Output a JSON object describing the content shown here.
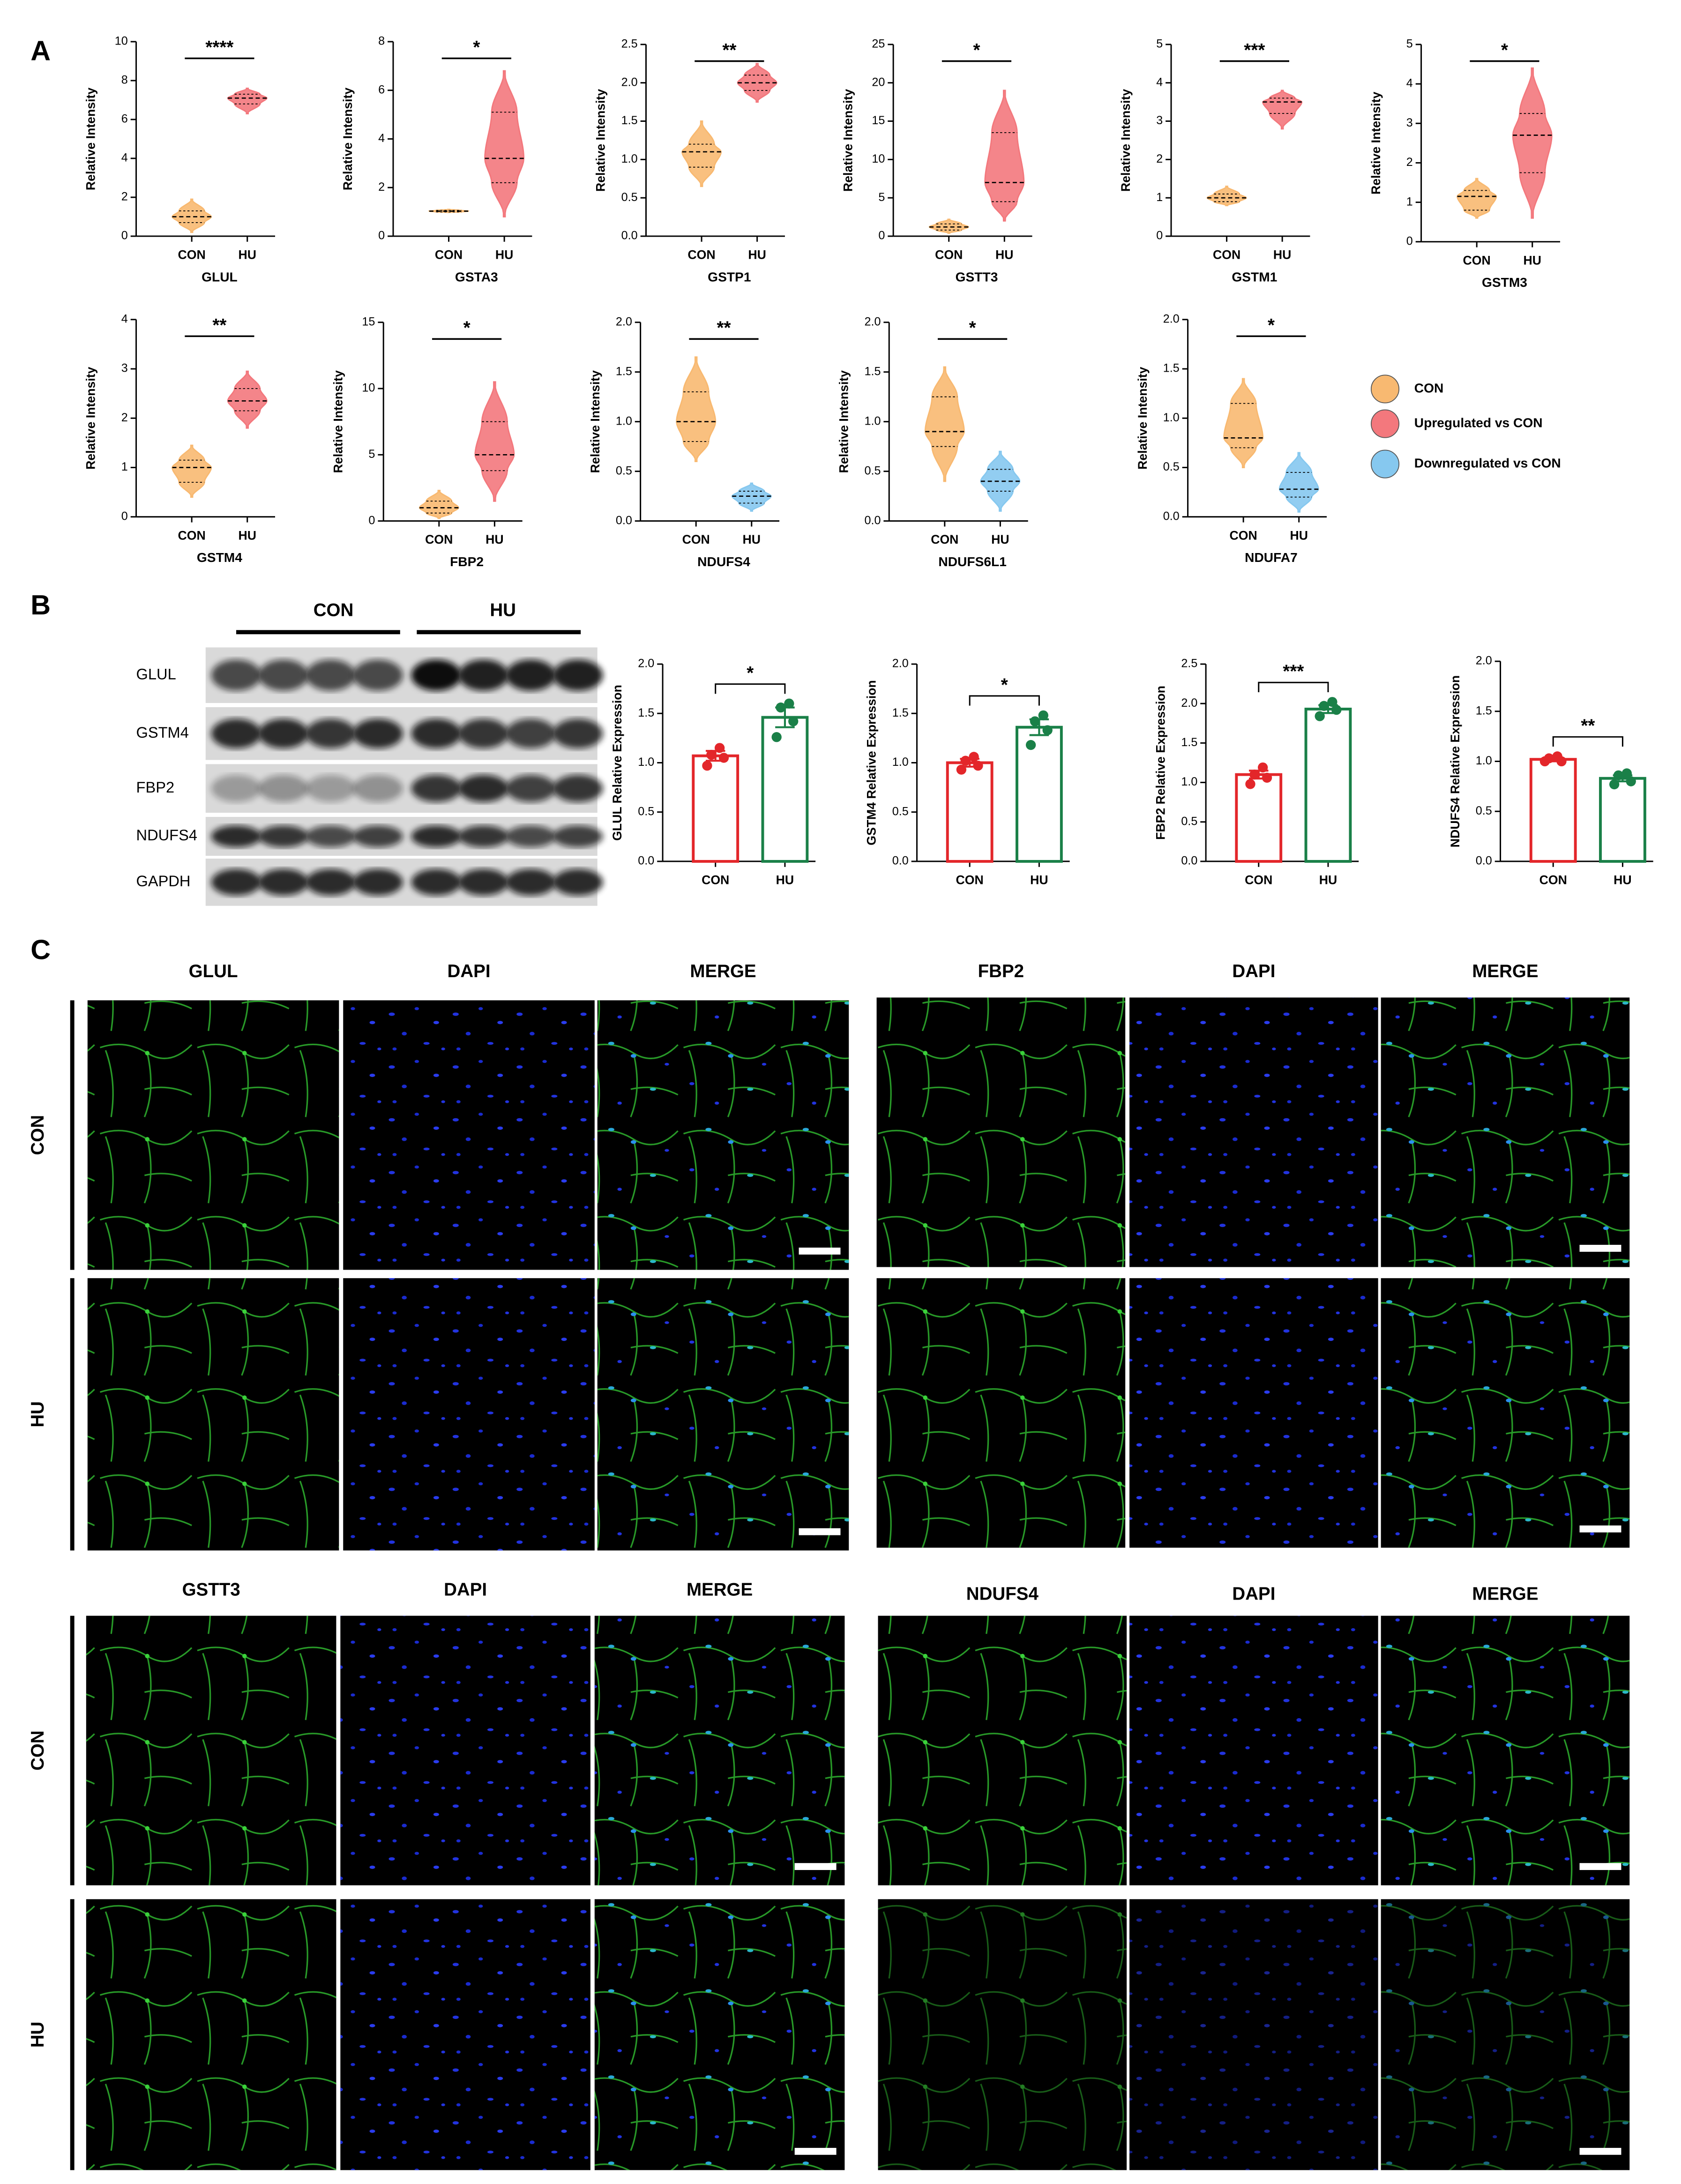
{
  "panel_labels": [
    "A",
    "B",
    "C"
  ],
  "legend": [
    {
      "label": "CON",
      "color": "#f8b971"
    },
    {
      "label": "Upregulated vs CON",
      "color": "#f3787d"
    },
    {
      "label": "Downregulated vs CON",
      "color": "#86c8ef"
    }
  ],
  "chart_data": [
    {
      "type": "violin",
      "xlabel": "GLUL",
      "ylabel": "Relative Intensity",
      "significance": "****",
      "categories": [
        "CON",
        "HU"
      ],
      "colors": [
        "#f8b971",
        "#f3787d"
      ],
      "min": [
        0.2,
        6.3
      ],
      "q1": [
        0.7,
        6.8
      ],
      "median": [
        1.0,
        7.1
      ],
      "q3": [
        1.3,
        7.3
      ],
      "max": [
        1.9,
        7.6
      ],
      "ylim": [
        0,
        10
      ],
      "yticks": [
        0,
        2,
        4,
        6,
        8,
        10
      ]
    },
    {
      "type": "violin",
      "xlabel": "GSTA3",
      "ylabel": "Relative Intensity",
      "significance": "*",
      "categories": [
        "CON",
        "HU"
      ],
      "colors": [
        "#f8b971",
        "#f3787d"
      ],
      "min": [
        0.98,
        0.8
      ],
      "q1": [
        1.0,
        2.2
      ],
      "median": [
        1.03,
        3.2
      ],
      "q3": [
        1.06,
        5.1
      ],
      "max": [
        1.1,
        6.8
      ],
      "ylim": [
        0,
        8
      ],
      "yticks": [
        0,
        2,
        4,
        6,
        8
      ]
    },
    {
      "type": "violin",
      "xlabel": "GSTP1",
      "ylabel": "Relative Intensity",
      "significance": "**",
      "categories": [
        "CON",
        "HU"
      ],
      "colors": [
        "#f8b971",
        "#f3787d"
      ],
      "min": [
        0.65,
        1.75
      ],
      "q1": [
        0.9,
        1.9
      ],
      "median": [
        1.1,
        2.0
      ],
      "q3": [
        1.2,
        2.1
      ],
      "max": [
        1.5,
        2.25
      ],
      "ylim": [
        0,
        2.5
      ],
      "yticks": [
        {
          "value": 0,
          "label": "0.0"
        },
        0.5,
        {
          "value": 1,
          "label": "1.0"
        },
        1.5,
        {
          "value": 2,
          "label": "2.0"
        },
        2.5
      ]
    },
    {
      "type": "violin",
      "xlabel": "GSTT3",
      "ylabel": "Relative Intensity",
      "significance": "*",
      "categories": [
        "CON",
        "HU"
      ],
      "colors": [
        "#f8b971",
        "#f3787d"
      ],
      "min": [
        0.4,
        2
      ],
      "q1": [
        0.8,
        4.5
      ],
      "median": [
        1.2,
        7
      ],
      "q3": [
        1.6,
        13.5
      ],
      "max": [
        2.2,
        19
      ],
      "ylim": [
        0,
        25
      ],
      "yticks": [
        0,
        5,
        10,
        15,
        20,
        25
      ]
    },
    {
      "type": "violin",
      "xlabel": "GSTM1",
      "ylabel": "Relative Intensity",
      "significance": "***",
      "categories": [
        "CON",
        "HU"
      ],
      "colors": [
        "#f8b971",
        "#f3787d"
      ],
      "min": [
        0.8,
        2.8
      ],
      "q1": [
        0.9,
        3.2
      ],
      "median": [
        1.0,
        3.5
      ],
      "q3": [
        1.1,
        3.6
      ],
      "max": [
        1.3,
        3.8
      ],
      "ylim": [
        0,
        5
      ],
      "yticks": [
        0,
        1,
        2,
        3,
        4,
        5
      ]
    },
    {
      "type": "violin",
      "xlabel": "GSTM3",
      "ylabel": "Relative Intensity",
      "significance": "*",
      "categories": [
        "CON",
        "HU"
      ],
      "colors": [
        "#f8b971",
        "#f3787d"
      ],
      "min": [
        0.6,
        0.6
      ],
      "q1": [
        0.8,
        1.75
      ],
      "median": [
        1.15,
        2.7
      ],
      "q3": [
        1.3,
        3.25
      ],
      "max": [
        1.6,
        4.4
      ],
      "ylim": [
        0,
        5
      ],
      "yticks": [
        0,
        1,
        2,
        3,
        4,
        5
      ]
    },
    {
      "type": "violin",
      "xlabel": "GSTM4",
      "ylabel": "Relative Intensity",
      "significance": "**",
      "categories": [
        "CON",
        "HU"
      ],
      "colors": [
        "#f8b971",
        "#f3787d"
      ],
      "min": [
        0.4,
        1.8
      ],
      "q1": [
        0.7,
        2.15
      ],
      "median": [
        1.0,
        2.35
      ],
      "q3": [
        1.15,
        2.6
      ],
      "max": [
        1.45,
        2.95
      ],
      "ylim": [
        0,
        4
      ],
      "yticks": [
        0,
        1,
        2,
        3,
        4
      ]
    },
    {
      "type": "violin",
      "xlabel": "FBP2",
      "ylabel": "Relative Intensity",
      "significance": "*",
      "categories": [
        "CON",
        "HU"
      ],
      "colors": [
        "#f8b971",
        "#f3787d"
      ],
      "min": [
        0.2,
        1.5
      ],
      "q1": [
        0.6,
        3.8
      ],
      "median": [
        1.0,
        5.0
      ],
      "q3": [
        1.5,
        7.5
      ],
      "max": [
        2.3,
        10.5
      ],
      "ylim": [
        0,
        15
      ],
      "yticks": [
        0,
        5,
        10,
        15
      ]
    },
    {
      "type": "violin",
      "xlabel": "NDUFS4",
      "ylabel": "Relative Intensity",
      "significance": "**",
      "categories": [
        "CON",
        "HU"
      ],
      "colors": [
        "#f8b971",
        "#86c8ef"
      ],
      "min": [
        0.6,
        0.1
      ],
      "q1": [
        0.8,
        0.18
      ],
      "median": [
        1.0,
        0.25
      ],
      "q3": [
        1.3,
        0.3
      ],
      "max": [
        1.65,
        0.38
      ],
      "ylim": [
        0,
        2
      ],
      "yticks": [
        {
          "value": 0,
          "label": "0.0"
        },
        0.5,
        {
          "value": 1,
          "label": "1.0"
        },
        1.5,
        {
          "value": 2,
          "label": "2.0"
        }
      ]
    },
    {
      "type": "violin",
      "xlabel": "NDUFS6L1",
      "ylabel": "Relative Intensity",
      "significance": "*",
      "categories": [
        "CON",
        "HU"
      ],
      "colors": [
        "#f8b971",
        "#86c8ef"
      ],
      "min": [
        0.4,
        0.1
      ],
      "q1": [
        0.75,
        0.3
      ],
      "median": [
        0.9,
        0.4
      ],
      "q3": [
        1.25,
        0.52
      ],
      "max": [
        1.55,
        0.7
      ],
      "ylim": [
        0,
        2
      ],
      "yticks": [
        {
          "value": 0,
          "label": "0.0"
        },
        0.5,
        {
          "value": 1,
          "label": "1.0"
        },
        1.5,
        {
          "value": 2,
          "label": "2.0"
        }
      ]
    },
    {
      "type": "violin",
      "xlabel": "NDUFA7",
      "ylabel": "Relative Intensity",
      "significance": "*",
      "categories": [
        "CON",
        "HU"
      ],
      "colors": [
        "#f8b971",
        "#86c8ef"
      ],
      "min": [
        0.5,
        0.05
      ],
      "q1": [
        0.7,
        0.2
      ],
      "median": [
        0.8,
        0.28
      ],
      "q3": [
        1.15,
        0.45
      ],
      "max": [
        1.4,
        0.65
      ],
      "ylim": [
        0,
        2
      ],
      "yticks": [
        {
          "value": 0,
          "label": "0.0"
        },
        0.5,
        {
          "value": 1,
          "label": "1.0"
        },
        1.5,
        {
          "value": 2,
          "label": "2.0"
        }
      ]
    },
    {
      "type": "bar",
      "ylabel": "GLUL Relative Expression",
      "significance": "*",
      "categories": [
        "CON",
        "HU"
      ],
      "colors": [
        "#e3262a",
        "#1a8048"
      ],
      "values": [
        1.07,
        1.46
      ],
      "errors": [
        0.05,
        0.1
      ],
      "points": [
        [
          0.97,
          1.05,
          1.08,
          1.15
        ],
        [
          1.26,
          1.42,
          1.56,
          1.6
        ]
      ],
      "ylim": [
        0,
        2
      ],
      "yticks": [
        {
          "value": 0,
          "label": "0.0"
        },
        0.5,
        {
          "value": 1,
          "label": "1.0"
        },
        1.5,
        {
          "value": 2,
          "label": "2.0"
        }
      ]
    },
    {
      "type": "bar",
      "ylabel": "GSTM4 Relative Expression",
      "significance": "*",
      "categories": [
        "CON",
        "HU"
      ],
      "colors": [
        "#e3262a",
        "#1a8048"
      ],
      "values": [
        1.0,
        1.36
      ],
      "errors": [
        0.04,
        0.08
      ],
      "points": [
        [
          0.93,
          0.97,
          1.02,
          1.06
        ],
        [
          1.18,
          1.33,
          1.42,
          1.48
        ]
      ],
      "ylim": [
        0,
        2
      ],
      "yticks": [
        {
          "value": 0,
          "label": "0.0"
        },
        0.5,
        {
          "value": 1,
          "label": "1.0"
        },
        1.5,
        {
          "value": 2,
          "label": "2.0"
        }
      ]
    },
    {
      "type": "bar",
      "ylabel": "FBP2 Relative Expression",
      "significance": "***",
      "categories": [
        "CON",
        "HU"
      ],
      "colors": [
        "#e3262a",
        "#1a8048"
      ],
      "values": [
        1.1,
        1.93
      ],
      "errors": [
        0.05,
        0.05
      ],
      "points": [
        [
          0.98,
          1.06,
          1.1,
          1.19
        ],
        [
          1.84,
          1.92,
          1.97,
          2.02
        ]
      ],
      "ylim": [
        0,
        2.5
      ],
      "yticks": [
        {
          "value": 0,
          "label": "0.0"
        },
        0.5,
        {
          "value": 1,
          "label": "1.0"
        },
        1.5,
        {
          "value": 2,
          "label": "2.0"
        },
        2.5
      ]
    },
    {
      "type": "bar",
      "ylabel": "NDUFS4 Relative Expression",
      "significance": "**",
      "categories": [
        "CON",
        "HU"
      ],
      "colors": [
        "#e3262a",
        "#1a8048"
      ],
      "values": [
        1.02,
        0.83
      ],
      "errors": [
        0.02,
        0.03
      ],
      "points": [
        [
          1.0,
          1.0,
          1.03,
          1.05
        ],
        [
          0.77,
          0.8,
          0.86,
          0.88
        ]
      ],
      "ylim": [
        0,
        2
      ],
      "yticks": [
        {
          "value": 0,
          "label": "0.0"
        },
        0.5,
        {
          "value": 1,
          "label": "1.0"
        },
        1.5,
        {
          "value": 2,
          "label": "2.0"
        }
      ]
    }
  ],
  "blot": {
    "groups": [
      "CON",
      "HU"
    ],
    "bands": [
      "GLUL",
      "GSTM4",
      "FBP2",
      "NDUFS4",
      "GAPDH"
    ]
  },
  "if_panels": [
    {
      "headers": [
        "GLUL",
        "DAPI",
        "MERGE"
      ],
      "rows": [
        "CON",
        "HU"
      ]
    },
    {
      "headers": [
        "FBP2",
        "DAPI",
        "MERGE"
      ],
      "rows": [
        "CON",
        "HU"
      ]
    },
    {
      "headers": [
        "GSTT3",
        "DAPI",
        "MERGE"
      ],
      "rows": [
        "CON",
        "HU"
      ]
    },
    {
      "headers": [
        "NDUFS4",
        "DAPI",
        "MERGE"
      ],
      "rows": [
        "CON",
        "HU"
      ]
    }
  ]
}
